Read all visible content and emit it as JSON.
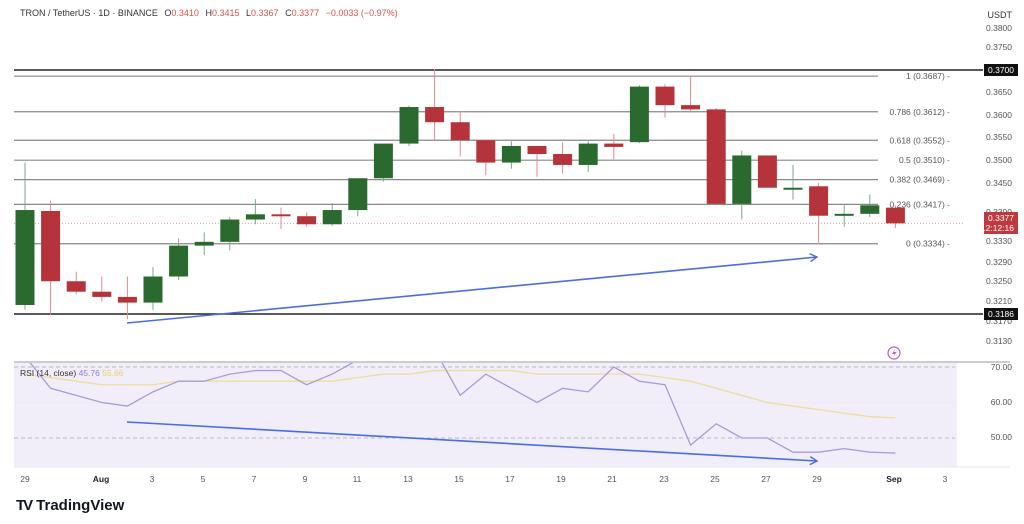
{
  "header": {
    "symbol": "TRON / TetherUS · 1D · BINANCE",
    "open_label": "O",
    "open": "0.3410",
    "high_label": "H",
    "high": "0.3415",
    "low_label": "L",
    "low": "0.3367",
    "close_label": "C",
    "close": "0.3377",
    "change": "−0.0033 (−0.97%)"
  },
  "currency": "USDT",
  "colors": {
    "up": "#2b6a2f",
    "down": "#b5343b",
    "trendline": "#4a6ee0",
    "rsi_line": "#a99bd6",
    "rsi_ma": "#f0dc9a",
    "rsi_bg": "#f1eefa"
  },
  "price_axis": [
    "0.3800",
    "0.3750",
    "0.3650",
    "0.3600",
    "0.3550",
    "0.3500",
    "0.3450",
    "0.3390",
    "0.3330",
    "0.3290",
    "0.3250",
    "0.3210",
    "0.3170",
    "0.3130"
  ],
  "price_badges": {
    "resistance": "0.3700",
    "support": "0.3186",
    "current_price": "0.3377",
    "countdown": "12:12:16"
  },
  "fib_levels": [
    {
      "label": "1 (0.3687)",
      "value": 0.3687
    },
    {
      "label": "0.786 (0.3612)",
      "value": 0.3612
    },
    {
      "label": "0.618 (0.3552)",
      "value": 0.3552
    },
    {
      "label": "0.5 (0.3510)",
      "value": 0.351
    },
    {
      "label": "0.382 (0.3469)",
      "value": 0.3469
    },
    {
      "label": "0.236 (0.3417)",
      "value": 0.3417
    },
    {
      "label": "0 (0.3334)",
      "value": 0.3334
    }
  ],
  "rsi": {
    "label": "RSI (14, close)",
    "value": "45.76",
    "ma_value": "55.66",
    "axis": [
      "70.00",
      "60.00",
      "50.00"
    ]
  },
  "x_axis": [
    "29",
    "Aug",
    "3",
    "5",
    "7",
    "9",
    "11",
    "13",
    "15",
    "17",
    "19",
    "21",
    "23",
    "25",
    "27",
    "29",
    "Sep",
    "3"
  ],
  "branding": "TradingView",
  "chart_data": {
    "type": "candlestick",
    "title": "TRON / TetherUS · 1D · BINANCE",
    "ylabel": "USDT",
    "ylim": [
      0.311,
      0.381
    ],
    "categories": [
      "Jul 29",
      "Jul 30",
      "Jul 31",
      "Aug 1",
      "Aug 2",
      "Aug 3",
      "Aug 4",
      "Aug 5",
      "Aug 6",
      "Aug 7",
      "Aug 8",
      "Aug 9",
      "Aug 10",
      "Aug 11",
      "Aug 12",
      "Aug 13",
      "Aug 14",
      "Aug 15",
      "Aug 16",
      "Aug 17",
      "Aug 18",
      "Aug 19",
      "Aug 20",
      "Aug 21",
      "Aug 22",
      "Aug 23",
      "Aug 24",
      "Aug 25",
      "Aug 26",
      "Aug 27",
      "Aug 28",
      "Aug 29",
      "Aug 30",
      "Aug 31",
      "Sep 1"
    ],
    "ohlc": [
      [
        0.3205,
        0.3505,
        0.3195,
        0.3405
      ],
      [
        0.3403,
        0.3425,
        0.3185,
        0.3255
      ],
      [
        0.3255,
        0.3275,
        0.3227,
        0.3233
      ],
      [
        0.3233,
        0.3265,
        0.3212,
        0.3222
      ],
      [
        0.3222,
        0.3265,
        0.3175,
        0.321
      ],
      [
        0.321,
        0.3285,
        0.3195,
        0.3265
      ],
      [
        0.3265,
        0.3345,
        0.3258,
        0.333
      ],
      [
        0.333,
        0.3358,
        0.331,
        0.3338
      ],
      [
        0.3338,
        0.339,
        0.332,
        0.3385
      ],
      [
        0.3385,
        0.3428,
        0.3375,
        0.3396
      ],
      [
        0.3396,
        0.341,
        0.3365,
        0.3392
      ],
      [
        0.3392,
        0.34,
        0.337,
        0.3375
      ],
      [
        0.3375,
        0.342,
        0.3372,
        0.3405
      ],
      [
        0.3405,
        0.345,
        0.3392,
        0.3472
      ],
      [
        0.3472,
        0.353,
        0.3465,
        0.3545
      ],
      [
        0.3545,
        0.3625,
        0.354,
        0.3622
      ],
      [
        0.3622,
        0.3702,
        0.355,
        0.359
      ],
      [
        0.359,
        0.3612,
        0.3518,
        0.3552
      ],
      [
        0.3552,
        0.3545,
        0.3478,
        0.3505
      ],
      [
        0.3505,
        0.355,
        0.3492,
        0.354
      ],
      [
        0.354,
        0.3537,
        0.3475,
        0.3523
      ],
      [
        0.3523,
        0.3548,
        0.3482,
        0.35
      ],
      [
        0.35,
        0.355,
        0.3485,
        0.3545
      ],
      [
        0.3545,
        0.3565,
        0.3512,
        0.3538
      ],
      [
        0.3548,
        0.3668,
        0.3546,
        0.3665
      ],
      [
        0.3665,
        0.367,
        0.36,
        0.3626
      ],
      [
        0.3626,
        0.3687,
        0.361,
        0.3617
      ],
      [
        0.3617,
        0.362,
        0.3418,
        0.3418
      ],
      [
        0.3418,
        0.353,
        0.3385,
        0.352
      ],
      [
        0.352,
        0.352,
        0.3452,
        0.3452
      ],
      [
        0.3452,
        0.35,
        0.3427,
        0.3452
      ],
      [
        0.3455,
        0.3462,
        0.3334,
        0.3393
      ],
      [
        0.3393,
        0.3415,
        0.337,
        0.3397
      ],
      [
        0.3397,
        0.3438,
        0.339,
        0.3415
      ],
      [
        0.341,
        0.3415,
        0.3367,
        0.3377
      ]
    ],
    "horizontal_lines": [
      0.37,
      0.3186
    ],
    "trendlines": [
      {
        "pane": "price",
        "from": [
          "Aug 2",
          0.3173
        ],
        "to": [
          "Aug 29",
          0.33
        ],
        "arrow": true
      },
      {
        "pane": "rsi",
        "from": [
          "Aug 2",
          54.5
        ],
        "to": [
          "Aug 29",
          44.5
        ],
        "arrow": true
      }
    ],
    "rsi_series": {
      "name": "RSI (14, close)",
      "values": [
        73,
        64,
        62,
        60,
        59,
        63,
        66,
        66,
        68,
        69,
        69,
        65,
        68,
        72,
        78,
        80,
        75,
        62,
        68,
        64,
        60,
        64,
        63,
        70,
        66,
        65,
        48,
        54,
        50,
        50,
        46,
        46,
        47,
        46,
        45.76
      ]
    },
    "rsi_ma_series": {
      "name": "RSI MA",
      "values": [
        68,
        67,
        66,
        65,
        65,
        65,
        66,
        66,
        66,
        66,
        66,
        66,
        66,
        67,
        68,
        68,
        69,
        69,
        69,
        69,
        68,
        68,
        68,
        68,
        68,
        67,
        66,
        64,
        62,
        60,
        59,
        58,
        57,
        56,
        55.66
      ]
    },
    "rsi_ylim": [
      40,
      72
    ],
    "rsi_bands": [
      70,
      50
    ]
  }
}
